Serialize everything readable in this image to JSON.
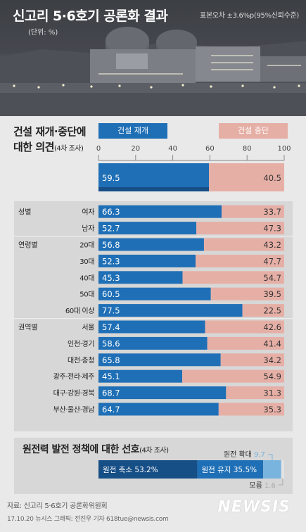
{
  "header": {
    "title": "신고리 5·6호기 공론화 결과",
    "unit": "(단위: %)",
    "error_margin": "표본오차 ±3.6%p(95%신뢰수준)"
  },
  "question1": {
    "title_line1": "건설 재개·중단에",
    "title_line2": "대한 의견",
    "title_note": "(4차 조사)"
  },
  "colors": {
    "resume": "#1f6fb6",
    "resume_dark": "#164e86",
    "stop": "#e6afa6"
  },
  "chart_data": {
    "type": "bar",
    "orientation": "horizontal-stacked-100",
    "xlim": [
      0,
      100
    ],
    "x_ticks": [
      0,
      20,
      40,
      60,
      80,
      100
    ],
    "series": [
      {
        "name": "건설 재개",
        "color": "#1f6fb6"
      },
      {
        "name": "건설 중단",
        "color": "#e6afa6"
      }
    ],
    "overall": {
      "resume": 59.5,
      "stop": 40.5
    },
    "groups": [
      {
        "label": "성별",
        "rows": [
          {
            "label": "여자",
            "resume": 66.3,
            "stop": 33.7
          },
          {
            "label": "남자",
            "resume": 52.7,
            "stop": 47.3
          }
        ]
      },
      {
        "label": "연령별",
        "rows": [
          {
            "label": "20대",
            "resume": 56.8,
            "stop": 43.2
          },
          {
            "label": "30대",
            "resume": 52.3,
            "stop": 47.7
          },
          {
            "label": "40대",
            "resume": 45.3,
            "stop": 54.7
          },
          {
            "label": "50대",
            "resume": 60.5,
            "stop": 39.5
          },
          {
            "label": "60대 이상",
            "resume": 77.5,
            "stop": 22.5
          }
        ]
      },
      {
        "label": "권역별",
        "rows": [
          {
            "label": "서울",
            "resume": 57.4,
            "stop": 42.6
          },
          {
            "label": "인천·경기",
            "resume": 58.6,
            "stop": 41.4
          },
          {
            "label": "대전·충청",
            "resume": 65.8,
            "stop": 34.2
          },
          {
            "label": "광주·전라·제주",
            "resume": 45.1,
            "stop": 54.9
          },
          {
            "label": "대구·강원·경북",
            "resume": 68.7,
            "stop": 31.3
          },
          {
            "label": "부산·울산·경남",
            "resume": 64.7,
            "stop": 35.3
          }
        ]
      }
    ]
  },
  "question2": {
    "title": "원전력 발전 정책에 대한 선호",
    "title_note": "(4차 조사)",
    "segments": [
      {
        "label": "원전 축소",
        "value": 53.2,
        "value_text": "53.2%",
        "color": "#164e86"
      },
      {
        "label": "원전 유지",
        "value": 35.5,
        "value_text": "35.5%",
        "color": "#1f6fb6"
      },
      {
        "label": "원전 확대",
        "value": 9.7,
        "value_text": "9.7",
        "color": "#78b4de"
      },
      {
        "label": "모름",
        "value": 1.6,
        "value_text": "1.6",
        "color": "#e3e3e3"
      }
    ]
  },
  "footer": {
    "source": "자료: 신고리 5·6호기 공론화위원회",
    "credit": "17.10.20   뉴시스 그래픽: 전진우 기자 618tue@newsis.com",
    "logo": "NEWSIS"
  }
}
